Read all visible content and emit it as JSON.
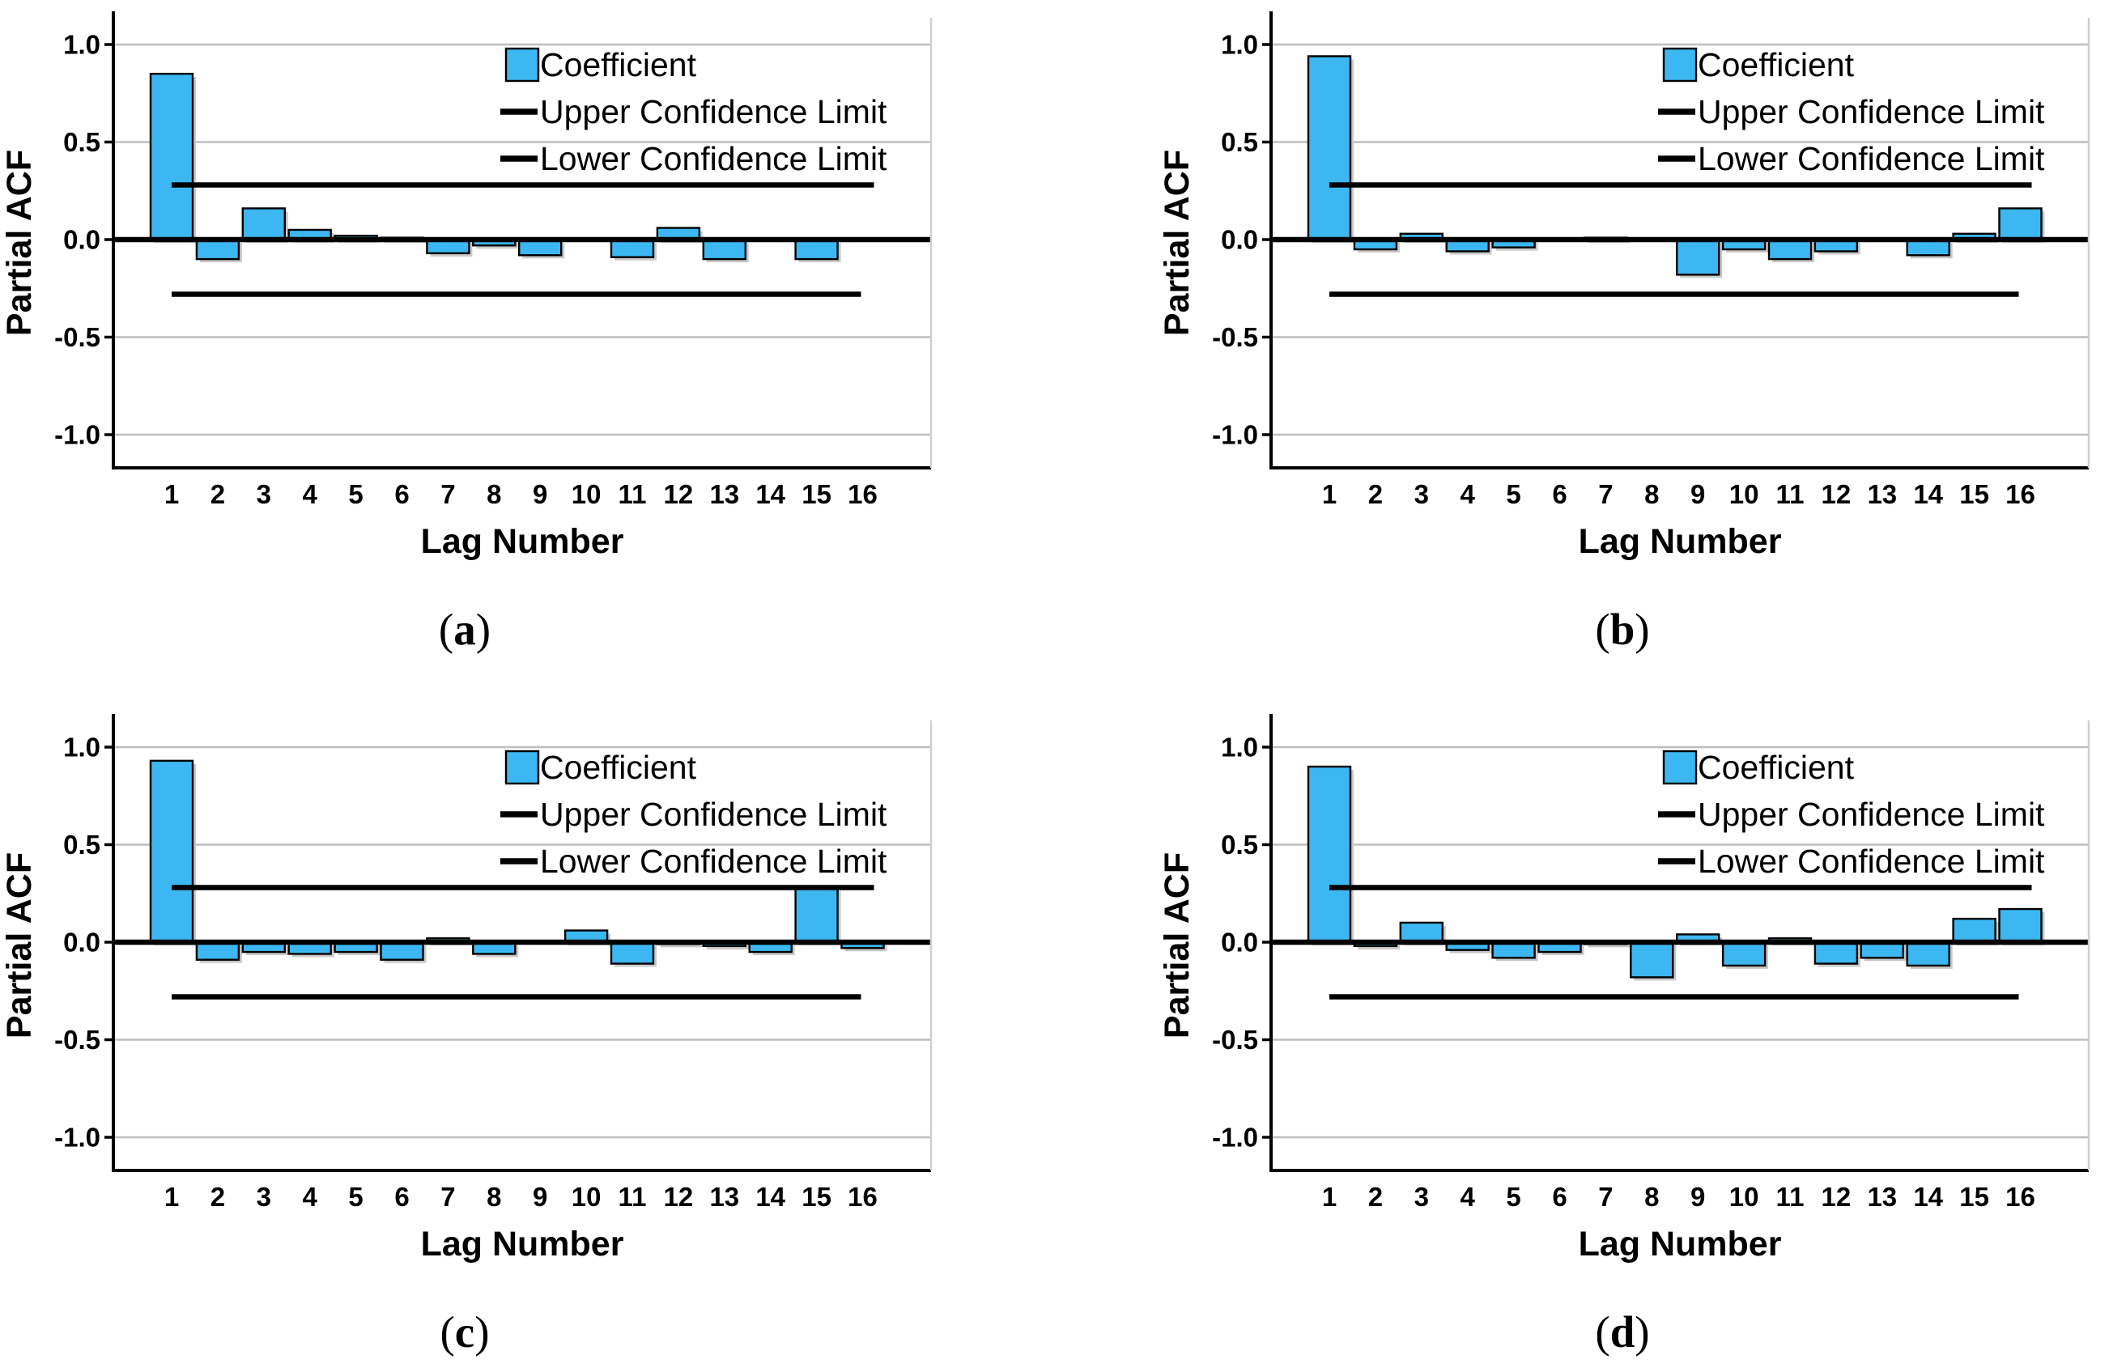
{
  "figure": {
    "description": "Four-panel partial autocorrelation (PACF) figure",
    "background": "#FFFFFF"
  },
  "colors": {
    "bar_fill": "#3DB7F1",
    "bar_stroke": "#000000",
    "bar_shadow": "#C9C9C9",
    "gridline": "#BEBEBE",
    "reference_line": "#000000",
    "axis_line": "#000000",
    "panel_border": "#CFCFCF",
    "text": "#000000"
  },
  "chart_data": [
    {
      "type": "bar",
      "panel_label_parts": [
        "(",
        "a",
        ")"
      ],
      "xlabel": "Lag Number",
      "ylabel": "Partial ACF",
      "categories": [
        1,
        2,
        3,
        4,
        5,
        6,
        7,
        8,
        9,
        10,
        11,
        12,
        13,
        14,
        15,
        16
      ],
      "values": [
        0.85,
        -0.1,
        0.16,
        0.05,
        0.02,
        0.01,
        -0.07,
        -0.03,
        -0.08,
        0.0,
        -0.09,
        0.06,
        -0.1,
        0.0,
        -0.1,
        0.0
      ],
      "upper_confidence_limit": 0.28,
      "lower_confidence_limit": -0.28,
      "ylim": [
        -1.17,
        1.14
      ],
      "yticks": [
        "1.0",
        "0.5",
        "0.0",
        "-0.5",
        "-1.0"
      ],
      "ytick_values": [
        1.0,
        0.5,
        0.0,
        -0.5,
        -1.0
      ],
      "grid": true,
      "legend_position": "top-right",
      "legend": [
        {
          "swatch": "square",
          "label": "Coefficient"
        },
        {
          "swatch": "line",
          "label": "Upper Confidence Limit"
        },
        {
          "swatch": "line",
          "label": "Lower Confidence Limit"
        }
      ]
    },
    {
      "type": "bar",
      "panel_label_parts": [
        "(",
        "b",
        ")"
      ],
      "xlabel": "Lag Number",
      "ylabel": "Partial ACF",
      "categories": [
        1,
        2,
        3,
        4,
        5,
        6,
        7,
        8,
        9,
        10,
        11,
        12,
        13,
        14,
        15,
        16
      ],
      "values": [
        0.94,
        -0.05,
        0.03,
        -0.06,
        -0.04,
        0.0,
        0.01,
        0.0,
        -0.18,
        -0.05,
        -0.1,
        -0.06,
        0.0,
        -0.08,
        0.03,
        0.16
      ],
      "upper_confidence_limit": 0.28,
      "lower_confidence_limit": -0.28,
      "ylim": [
        -1.17,
        1.14
      ],
      "yticks": [
        "1.0",
        "0.5",
        "0.0",
        "-0.5",
        "-1.0"
      ],
      "ytick_values": [
        1.0,
        0.5,
        0.0,
        -0.5,
        -1.0
      ],
      "grid": true,
      "legend_position": "top-right",
      "legend": [
        {
          "swatch": "square",
          "label": "Coefficient"
        },
        {
          "swatch": "line",
          "label": "Upper Confidence Limit"
        },
        {
          "swatch": "line",
          "label": "Lower Confidence Limit"
        }
      ]
    },
    {
      "type": "bar",
      "panel_label_parts": [
        "(",
        "c",
        ")"
      ],
      "xlabel": "Lag Number",
      "ylabel": "Partial ACF",
      "categories": [
        1,
        2,
        3,
        4,
        5,
        6,
        7,
        8,
        9,
        10,
        11,
        12,
        13,
        14,
        15,
        16
      ],
      "values": [
        0.93,
        -0.09,
        -0.05,
        -0.06,
        -0.05,
        -0.09,
        0.02,
        -0.06,
        0.0,
        0.06,
        -0.11,
        -0.01,
        -0.02,
        -0.05,
        0.28,
        -0.03
      ],
      "upper_confidence_limit": 0.28,
      "lower_confidence_limit": -0.28,
      "ylim": [
        -1.17,
        1.14
      ],
      "yticks": [
        "1.0",
        "0.5",
        "0.0",
        "-0.5",
        "-1.0"
      ],
      "ytick_values": [
        1.0,
        0.5,
        0.0,
        -0.5,
        -1.0
      ],
      "grid": true,
      "legend_position": "top-right",
      "legend": [
        {
          "swatch": "square",
          "label": "Coefficient"
        },
        {
          "swatch": "line",
          "label": "Upper Confidence Limit"
        },
        {
          "swatch": "line",
          "label": "Lower Confidence Limit"
        }
      ]
    },
    {
      "type": "bar",
      "panel_label_parts": [
        "(",
        "d",
        ")"
      ],
      "xlabel": "Lag Number",
      "ylabel": "Partial ACF",
      "categories": [
        1,
        2,
        3,
        4,
        5,
        6,
        7,
        8,
        9,
        10,
        11,
        12,
        13,
        14,
        15,
        16
      ],
      "values": [
        0.9,
        -0.02,
        0.1,
        -0.04,
        -0.08,
        -0.05,
        -0.01,
        -0.18,
        0.04,
        -0.12,
        0.02,
        -0.11,
        -0.08,
        -0.12,
        0.12,
        0.17
      ],
      "upper_confidence_limit": 0.28,
      "lower_confidence_limit": -0.28,
      "ylim": [
        -1.17,
        1.14
      ],
      "yticks": [
        "1.0",
        "0.5",
        "0.0",
        "-0.5",
        "-1.0"
      ],
      "ytick_values": [
        1.0,
        0.5,
        0.0,
        -0.5,
        -1.0
      ],
      "grid": true,
      "legend_position": "top-right",
      "legend": [
        {
          "swatch": "square",
          "label": "Coefficient"
        },
        {
          "swatch": "line",
          "label": "Upper Confidence Limit"
        },
        {
          "swatch": "line",
          "label": "Lower Confidence Limit"
        }
      ]
    }
  ]
}
